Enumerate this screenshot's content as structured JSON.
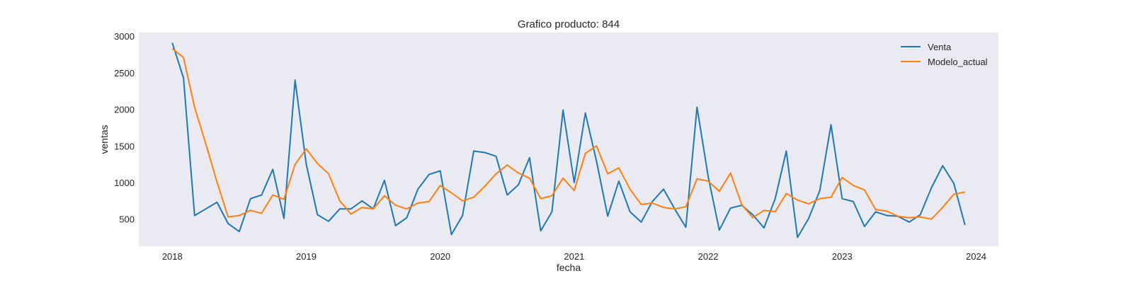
{
  "chart_data": {
    "type": "line",
    "title": "Grafico producto: 844",
    "xlabel": "fecha",
    "ylabel": "ventas",
    "x_start": "2018-01",
    "x_ticks": [
      "2018",
      "2019",
      "2020",
      "2021",
      "2022",
      "2023",
      "2024"
    ],
    "y_ticks": [
      500,
      1000,
      1500,
      2000,
      2500,
      3000
    ],
    "ylim": [
      130,
      3050
    ],
    "xlim": [
      "2017-10",
      "2024-03"
    ],
    "grid": false,
    "legend": "top-right",
    "background": "#eaeaf2",
    "series": [
      {
        "name": "Venta",
        "color": "#1f77b4",
        "values": [
          2910,
          2430,
          550,
          640,
          730,
          440,
          330,
          780,
          830,
          1180,
          510,
          2400,
          1250,
          560,
          470,
          640,
          640,
          750,
          640,
          1030,
          410,
          520,
          910,
          1110,
          1160,
          290,
          550,
          1430,
          1410,
          1360,
          830,
          970,
          1340,
          340,
          600,
          1990,
          1000,
          1950,
          1290,
          540,
          1020,
          600,
          460,
          740,
          910,
          640,
          390,
          2030,
          1080,
          350,
          650,
          690,
          560,
          380,
          780,
          1430,
          250,
          510,
          890,
          1790,
          780,
          740,
          400,
          600,
          550,
          540,
          460,
          560,
          930,
          1230,
          990,
          420
        ]
      },
      {
        "name": "Modelo_actual",
        "color": "#ff7f0e",
        "values": [
          2830,
          2710,
          2030,
          1530,
          1010,
          530,
          550,
          620,
          580,
          830,
          770,
          1250,
          1460,
          1260,
          1120,
          750,
          570,
          660,
          640,
          820,
          690,
          640,
          720,
          740,
          960,
          860,
          750,
          800,
          950,
          1120,
          1240,
          1130,
          1060,
          780,
          820,
          1060,
          890,
          1400,
          1500,
          1120,
          1200,
          910,
          700,
          720,
          660,
          640,
          670,
          1050,
          1020,
          880,
          1130,
          700,
          520,
          620,
          600,
          850,
          760,
          710,
          780,
          800,
          1070,
          960,
          900,
          630,
          610,
          540,
          520,
          530,
          500,
          660,
          840,
          870
        ]
      }
    ]
  }
}
